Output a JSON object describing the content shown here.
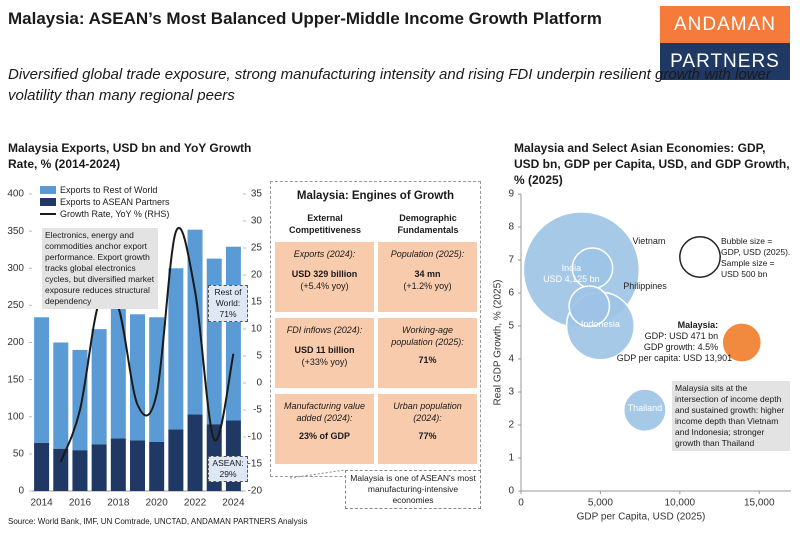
{
  "header": {
    "title": "Malaysia: ASEAN’s Most Balanced Upper-Middle Income Growth Platform",
    "subtitle": "Diversified global trade exposure, strong manufacturing intensity and rising FDI underpin resilient growth with lower volatility than many regional peers",
    "logo": [
      "ANDAMAN",
      "PARTNERS"
    ]
  },
  "chart_data": [
    {
      "type": "bar",
      "title": "Malaysia Exports, USD bn and YoY Growth Rate, % (2014-2024)",
      "categories": [
        "2014",
        null,
        "2016",
        null,
        "2018",
        null,
        "2020",
        null,
        "2022",
        null,
        "2024"
      ],
      "stacked": true,
      "series": [
        {
          "name": "Exports to Rest of World",
          "color": "#5b9bd5",
          "values": [
            169,
            143,
            135,
            155,
            177,
            170,
            168,
            217,
            249,
            223,
            234
          ]
        },
        {
          "name": "Exports to ASEAN Partners",
          "color": "#203864",
          "values": [
            65,
            57,
            55,
            63,
            71,
            68,
            66,
            83,
            103,
            90,
            95
          ]
        },
        {
          "name": "Growth Rate, YoY % (RHS)",
          "color": "#1a1a1a",
          "type": "line",
          "axis": "y2",
          "values": [
            null,
            -14.6,
            -5,
            15,
            14,
            -4,
            -2,
            28,
            17,
            -10.5,
            5.4
          ]
        }
      ],
      "ylim": [
        0,
        400
      ],
      "yticks": [
        0,
        50,
        100,
        150,
        200,
        250,
        300,
        350,
        400
      ],
      "y2lim": [
        -20,
        35
      ],
      "y2ticks": [
        -20,
        -15,
        -10,
        -5,
        0,
        5,
        10,
        15,
        20,
        25,
        30,
        35
      ],
      "legend": "upper left",
      "annotations": [
        "Electronics, energy and commodities anchor export performance. Export growth tracks global electronics cycles, but diversified market exposure reduces structural dependency",
        "Rest of\nWorld:\n71%",
        "ASEAN:\n29%"
      ]
    },
    {
      "type": "bubble",
      "title": "Malaysia and Select Asian Economies: GDP, USD bn, GDP per Capita, USD, and GDP Growth, % (2025)",
      "x_label": "GDP per Capita, USD (2025)",
      "y_label": "Real GDP Growth, % (2025)",
      "xlim": [
        0,
        17000
      ],
      "xticks": [
        0,
        {
          "value": 5000,
          "label": "5,000"
        },
        {
          "value": 10000,
          "label": "10,000"
        },
        {
          "value": 15000,
          "label": "15,000"
        }
      ],
      "ylim": [
        0,
        9
      ],
      "yticks": [
        0,
        1,
        2,
        3,
        4,
        5,
        6,
        7,
        8,
        9
      ],
      "points": [
        {
          "label": "India\nUSD 4,125 bn",
          "x": 3800,
          "y": 6.7,
          "size": 4125,
          "color": "#9dc3e6"
        },
        {
          "label": "Indonesia",
          "x": 5000,
          "y": 5.0,
          "size": 1400,
          "color": "#9dc3e6"
        },
        {
          "label": "Vietnam",
          "x": 4500,
          "y": 6.75,
          "size": 500,
          "color": "#9dc3e6"
        },
        {
          "label": "Philippines",
          "x": 4300,
          "y": 5.6,
          "size": 500,
          "color": "#9dc3e6"
        },
        {
          "label": "Thailand",
          "x": 7800,
          "y": 2.45,
          "size": 550,
          "color": "#9dc3e6"
        },
        {
          "label": "Malaysia:",
          "x": 13901,
          "y": 4.5,
          "size": 471,
          "color": "#f07d2a"
        }
      ],
      "highlight_details": [
        "GDP: USD 471 bn",
        "GDP growth: 4.5%",
        "GDP per capita: USD 13,901"
      ],
      "size_legend": {
        "label": "Bubble size =\nGDP, USD (2025).\nSample size =\nUSD 500 bn",
        "size": 500
      },
      "annotations": [
        "Malaysia sits at the intersection of income depth and sustained growth: higher income depth than Vietnam and Indonesia; stronger growth than Thailand"
      ]
    }
  ],
  "engines": {
    "title": "Malaysia: Engines of Growth",
    "columns": [
      "External\nCompetitiveness",
      "Demographic\nFundamentals"
    ],
    "rows": [
      [
        {
          "label": "Exports (2024):",
          "value": "USD 329 billion",
          "change": "(+5.4% yoy)"
        },
        {
          "label": "Population (2025):",
          "value": "34 mn",
          "change": "(+1.2% yoy)"
        }
      ],
      [
        {
          "label": "FDI inflows (2024):",
          "value": "USD 11 billion",
          "change": "(+33% yoy)"
        },
        {
          "label": "Working-age\npopulation (2025):",
          "value": "71%"
        }
      ],
      [
        {
          "label": "Manufacturing value\nadded (2024):",
          "value": "23% of GDP"
        },
        {
          "label": "Urban population\n(2024):",
          "value": "77%"
        }
      ]
    ],
    "note": "Malaysia is one of ASEAN's most manufacturing-intensive economies"
  },
  "source": "Source: World Bank, IMF, UN Comtrade, UNCTAD, ANDAMAN PARTNERS Analysis"
}
